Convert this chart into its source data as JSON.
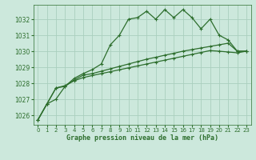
{
  "title": "Graphe pression niveau de la mer (hPa)",
  "bg_color": "#cce8dc",
  "grid_color": "#aacfbe",
  "line_color": "#2d6e2d",
  "xlim": [
    -0.5,
    23.5
  ],
  "ylim": [
    1025.4,
    1032.9
  ],
  "yticks": [
    1026,
    1027,
    1028,
    1029,
    1030,
    1031,
    1032
  ],
  "xticks": [
    0,
    1,
    2,
    3,
    4,
    5,
    6,
    7,
    8,
    9,
    10,
    11,
    12,
    13,
    14,
    15,
    16,
    17,
    18,
    19,
    20,
    21,
    22,
    23
  ],
  "series1_x": [
    0,
    1,
    2,
    3,
    4,
    5,
    6,
    7,
    8,
    9,
    10,
    11,
    12,
    13,
    14,
    15,
    16,
    17,
    18,
    19,
    20,
    21,
    22,
    23
  ],
  "series1_y": [
    1025.7,
    1026.7,
    1027.0,
    1027.8,
    1028.3,
    1028.6,
    1028.85,
    1029.2,
    1030.4,
    1031.0,
    1032.0,
    1032.1,
    1032.5,
    1032.0,
    1032.6,
    1032.1,
    1032.6,
    1032.1,
    1031.4,
    1032.0,
    1031.0,
    1030.7,
    1030.0,
    1030.0
  ],
  "series2_x": [
    0,
    1,
    2,
    3,
    4,
    5,
    6,
    7,
    8,
    9,
    10,
    11,
    12,
    13,
    14,
    15,
    16,
    17,
    18,
    19,
    20,
    21,
    22,
    23
  ],
  "series2_y": [
    1025.7,
    1026.7,
    1027.7,
    1027.8,
    1028.2,
    1028.5,
    1028.6,
    1028.75,
    1028.9,
    1029.05,
    1029.2,
    1029.35,
    1029.5,
    1029.62,
    1029.75,
    1029.87,
    1030.0,
    1030.1,
    1030.2,
    1030.3,
    1030.4,
    1030.5,
    1030.0,
    1030.0
  ],
  "series3_x": [
    0,
    1,
    2,
    3,
    4,
    5,
    6,
    7,
    8,
    9,
    10,
    11,
    12,
    13,
    14,
    15,
    16,
    17,
    18,
    19,
    20,
    21,
    22,
    23
  ],
  "series3_y": [
    1025.7,
    1026.7,
    1027.7,
    1027.85,
    1028.15,
    1028.35,
    1028.48,
    1028.6,
    1028.72,
    1028.84,
    1028.96,
    1029.08,
    1029.2,
    1029.32,
    1029.44,
    1029.56,
    1029.68,
    1029.8,
    1029.92,
    1030.04,
    1030.0,
    1029.95,
    1029.9,
    1030.0
  ]
}
